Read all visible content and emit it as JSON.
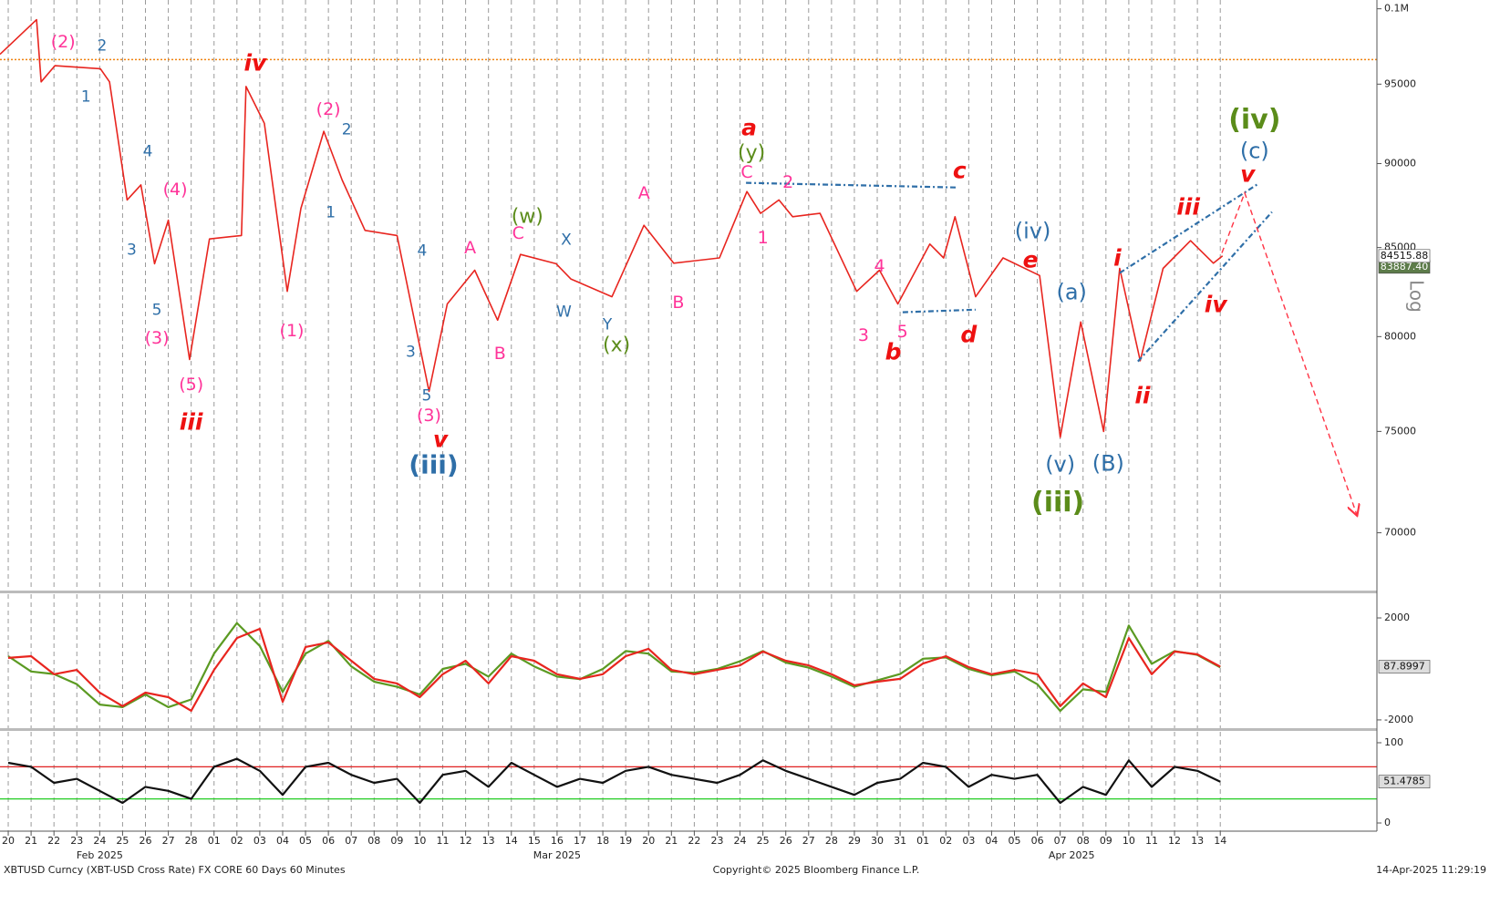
{
  "chart_data": [
    {
      "type": "line",
      "log_scale": true,
      "scale_label": "Log",
      "xlim": [
        -0.36,
        59.85
      ],
      "ylim": [
        67300,
        100600
      ],
      "yticks": [
        70000,
        75000,
        80000,
        85000,
        90000,
        95000,
        {
          "value": 100000,
          "label": "0.1M"
        }
      ],
      "xticks": [
        {
          "value": 0,
          "label": "20"
        },
        {
          "value": 1,
          "label": "21"
        },
        {
          "value": 2,
          "label": "22"
        },
        {
          "value": 3,
          "label": "23"
        },
        {
          "value": 4,
          "label": "24"
        },
        {
          "value": 5,
          "label": "25"
        },
        {
          "value": 6,
          "label": "26"
        },
        {
          "value": 7,
          "label": "27"
        },
        {
          "value": 8,
          "label": "28"
        },
        {
          "value": 9,
          "label": "01"
        },
        {
          "value": 10,
          "label": "02"
        },
        {
          "value": 11,
          "label": "03"
        },
        {
          "value": 12,
          "label": "04"
        },
        {
          "value": 13,
          "label": "05"
        },
        {
          "value": 14,
          "label": "06"
        },
        {
          "value": 15,
          "label": "07"
        },
        {
          "value": 16,
          "label": "08"
        },
        {
          "value": 17,
          "label": "09"
        },
        {
          "value": 18,
          "label": "10"
        },
        {
          "value": 19,
          "label": "11"
        },
        {
          "value": 20,
          "label": "12"
        },
        {
          "value": 21,
          "label": "13"
        },
        {
          "value": 22,
          "label": "14"
        },
        {
          "value": 23,
          "label": "15"
        },
        {
          "value": 24,
          "label": "16"
        },
        {
          "value": 25,
          "label": "17"
        },
        {
          "value": 26,
          "label": "18"
        },
        {
          "value": 27,
          "label": "19"
        },
        {
          "value": 28,
          "label": "20"
        },
        {
          "value": 29,
          "label": "21"
        },
        {
          "value": 30,
          "label": "22"
        },
        {
          "value": 31,
          "label": "23"
        },
        {
          "value": 32,
          "label": "24"
        },
        {
          "value": 33,
          "label": "25"
        },
        {
          "value": 34,
          "label": "26"
        },
        {
          "value": 35,
          "label": "27"
        },
        {
          "value": 36,
          "label": "28"
        },
        {
          "value": 37,
          "label": "29"
        },
        {
          "value": 38,
          "label": "30"
        },
        {
          "value": 39,
          "label": "31"
        },
        {
          "value": 40,
          "label": "01"
        },
        {
          "value": 41,
          "label": "02"
        },
        {
          "value": 42,
          "label": "03"
        },
        {
          "value": 43,
          "label": "04"
        },
        {
          "value": 44,
          "label": "05"
        },
        {
          "value": 45,
          "label": "06"
        },
        {
          "value": 46,
          "label": "07"
        },
        {
          "value": 47,
          "label": "08"
        },
        {
          "value": 48,
          "label": "09"
        },
        {
          "value": 49,
          "label": "10"
        },
        {
          "value": 50,
          "label": "11"
        },
        {
          "value": 51,
          "label": "12"
        },
        {
          "value": 52,
          "label": "13"
        },
        {
          "value": 53,
          "label": "14"
        }
      ],
      "month_labels": [
        {
          "value": 4,
          "label": "Feb 2025"
        },
        {
          "value": 24,
          "label": "Mar 2025"
        },
        {
          "value": 46.5,
          "label": "Apr 2025"
        }
      ],
      "series": [
        {
          "color": "#e8251f",
          "x": [
            -0.36,
            1.24,
            1.44,
            2.04,
            4.03,
            4.43,
            5.2,
            5.8,
            6.4,
            7.0,
            7.93,
            8.8,
            10.2,
            10.4,
            11.2,
            12.2,
            12.8,
            13.8,
            14.6,
            15.6,
            17.0,
            18.4,
            19.2,
            20.4,
            21.4,
            22.4,
            23.96,
            24.6,
            26.4,
            27.8,
            29.1,
            31.1,
            32.3,
            32.9,
            33.7,
            34.3,
            35.5,
            37.1,
            38.1,
            38.9,
            40.3,
            40.9,
            41.4,
            42.3,
            43.5,
            45.1,
            46.0,
            46.9,
            47.9,
            48.6,
            49.5,
            50.5,
            51.7,
            52.7,
            53.1
          ],
          "values": [
            96950,
            99260,
            95150,
            96200,
            96000,
            95150,
            87800,
            88700,
            84070,
            86600,
            78760,
            85500,
            85700,
            94850,
            92500,
            82500,
            87300,
            92000,
            89000,
            86000,
            85700,
            77070,
            81800,
            83700,
            80900,
            84600,
            84070,
            83200,
            82200,
            86300,
            84100,
            84400,
            88300,
            87000,
            87800,
            86800,
            87000,
            82500,
            83700,
            81800,
            85200,
            84400,
            86800,
            82200,
            84400,
            83400,
            74700,
            80800,
            75000,
            83800,
            78700,
            83800,
            85400,
            84100,
            84515.88
          ]
        }
      ],
      "ma_last": {
        "value": 83887.4,
        "label": "83887.40"
      },
      "reference_line": {
        "value": 96600,
        "color": "#f0820f"
      },
      "trend_lines": [
        {
          "color": "#2f6fa8",
          "x": [
            32.26,
            41.43
          ],
          "y": [
            88830,
            88550
          ]
        },
        {
          "color": "#2f6fa8",
          "x": [
            39.11,
            42.3
          ],
          "y": [
            81340,
            81480
          ]
        },
        {
          "color": "#2f6fa8",
          "x": [
            48.6,
            54.67
          ],
          "y": [
            83540,
            88780
          ]
        },
        {
          "color": "#2f6fa8",
          "x": [
            49.4,
            55.26
          ],
          "y": [
            78660,
            87080
          ]
        }
      ],
      "projection": {
        "color": "#ff3344",
        "x": [
          53.07,
          54.07,
          58.97
        ],
        "y": [
          84690,
          88220,
          70870
        ]
      },
      "wave_labels": [
        {
          "color": "#ff3399",
          "labels": [
            {
              "text": "(2)",
              "x": 2.4,
              "y": 97730
            },
            {
              "text": "(4)",
              "x": 7.3,
              "y": 88390
            },
            {
              "text": "(3)",
              "x": 6.5,
              "y": 79890
            },
            {
              "text": "(5)",
              "x": 8.0,
              "y": 77400
            },
            {
              "text": "(2)",
              "x": 14.0,
              "y": 93350
            },
            {
              "text": "(1)",
              "x": 12.4,
              "y": 80280
            },
            {
              "text": "(3)",
              "x": 18.4,
              "y": 75780
            },
            {
              "text": "A",
              "x": 20.2,
              "y": 84950
            },
            {
              "text": "C",
              "x": 22.3,
              "y": 85800
            },
            {
              "text": "A",
              "x": 27.8,
              "y": 88170
            },
            {
              "text": "B",
              "x": 21.5,
              "y": 79050
            },
            {
              "text": "B",
              "x": 29.3,
              "y": 81840
            },
            {
              "text": "C",
              "x": 32.3,
              "y": 89440
            },
            {
              "text": "2",
              "x": 34.1,
              "y": 88830
            },
            {
              "text": "1",
              "x": 33.0,
              "y": 85530
            },
            {
              "text": "4",
              "x": 38.1,
              "y": 83900
            },
            {
              "text": "3",
              "x": 37.4,
              "y": 80040
            },
            {
              "text": "5",
              "x": 39.1,
              "y": 80230
            }
          ]
        },
        {
          "color": "#2f6fa8",
          "labels": [
            {
              "text": "2",
              "x": 4.1,
              "y": 97490
            },
            {
              "text": "1",
              "x": 3.4,
              "y": 94160
            },
            {
              "text": "4",
              "x": 6.1,
              "y": 90720
            },
            {
              "text": "3",
              "x": 5.4,
              "y": 84840
            },
            {
              "text": "5",
              "x": 6.5,
              "y": 81440
            },
            {
              "text": "2",
              "x": 14.8,
              "y": 92080
            },
            {
              "text": "1",
              "x": 14.1,
              "y": 87030
            },
            {
              "text": "4",
              "x": 18.1,
              "y": 84790
            },
            {
              "text": "3",
              "x": 17.6,
              "y": 79150
            },
            {
              "text": "5",
              "x": 18.3,
              "y": 76830
            },
            {
              "text": "X",
              "x": 24.4,
              "y": 85420
            },
            {
              "text": "W",
              "x": 24.3,
              "y": 81340
            },
            {
              "text": "Y",
              "x": 26.2,
              "y": 80630
            }
          ]
        },
        {
          "color": "#2f6fa8",
          "labels": [
            {
              "text": "(iv)",
              "x": 44.8,
              "y": 85900
            },
            {
              "text": "(a)",
              "x": 46.5,
              "y": 82400
            },
            {
              "text": "(v)",
              "x": 46.0,
              "y": 73290
            },
            {
              "text": "(B)",
              "x": 48.1,
              "y": 73330
            },
            {
              "text": "(c)",
              "x": 54.5,
              "y": 90720
            }
          ]
        },
        {
          "color": "#2f6fa8",
          "labels": [
            {
              "text": "(iii)",
              "x": 18.6,
              "y": 73240
            }
          ]
        },
        {
          "color": "#5b8c1a",
          "labels": [
            {
              "text": "(w)",
              "x": 22.7,
              "y": 86760
            },
            {
              "text": "(x)",
              "x": 26.6,
              "y": 79490
            },
            {
              "text": "(y)",
              "x": 32.5,
              "y": 90610
            }
          ]
        },
        {
          "color": "#5b8c1a",
          "labels": [
            {
              "text": "(iii)",
              "x": 45.9,
              "y": 71410
            },
            {
              "text": "(iv)",
              "x": 54.5,
              "y": 92660
            }
          ]
        },
        {
          "color": "#ee1111",
          "labels": [
            {
              "text": "iv",
              "x": 10.8,
              "y": 96290
            },
            {
              "text": "iii",
              "x": 8.0,
              "y": 75410
            },
            {
              "text": "v",
              "x": 18.9,
              "y": 74530
            },
            {
              "text": "a",
              "x": 32.4,
              "y": 92140
            },
            {
              "text": "c",
              "x": 41.6,
              "y": 89500
            },
            {
              "text": "b",
              "x": 38.7,
              "y": 79100
            },
            {
              "text": "d",
              "x": 42.0,
              "y": 80040
            },
            {
              "text": "e",
              "x": 44.7,
              "y": 84220
            },
            {
              "text": "i",
              "x": 48.5,
              "y": 84320
            },
            {
              "text": "ii",
              "x": 49.6,
              "y": 76780
            },
            {
              "text": "iii",
              "x": 51.6,
              "y": 87300
            },
            {
              "text": "iv",
              "x": 52.8,
              "y": 81700
            },
            {
              "text": "v",
              "x": 54.2,
              "y": 89270
            }
          ]
        }
      ]
    },
    {
      "type": "line",
      "xlim": [
        -0.36,
        59.85
      ],
      "ylim": [
        -2360,
        2930
      ],
      "yticks": [
        2000,
        -2000
      ],
      "x": [
        0,
        1,
        2,
        3,
        4,
        5,
        6,
        7,
        8,
        9,
        10,
        11,
        12,
        13,
        14,
        15,
        16,
        17,
        18,
        19,
        20,
        21,
        22,
        23,
        24,
        25,
        26,
        27,
        28,
        29,
        30,
        31,
        32,
        33,
        34,
        35,
        36,
        37,
        38,
        39,
        40,
        41,
        42,
        43,
        44,
        45,
        46,
        47,
        48,
        49,
        50,
        51,
        52,
        53
      ],
      "series": [
        {
          "color": "#5b9a22",
          "values": [
            500,
            -100,
            -200,
            -600,
            -1400,
            -1500,
            -1000,
            -1500,
            -1200,
            600,
            1800,
            900,
            -900,
            600,
            1100,
            100,
            -500,
            -700,
            -1000,
            0,
            200,
            -300,
            600,
            100,
            -300,
            -400,
            0,
            700,
            600,
            -100,
            -150,
            0,
            300,
            700,
            250,
            50,
            -300,
            -700,
            -450,
            -200,
            400,
            450,
            0,
            -250,
            -100,
            -600,
            -1650,
            -800,
            -900,
            1700,
            200,
            700,
            550,
            60
          ]
        },
        {
          "color": "#e8251f",
          "values": [
            430,
            500,
            -210,
            -40,
            -930,
            -1460,
            -930,
            -1110,
            -1640,
            -40,
            1210,
            1570,
            -1290,
            860,
            1040,
            320,
            -390,
            -570,
            -1110,
            -210,
            320,
            -570,
            500,
            320,
            -210,
            -390,
            -210,
            500,
            790,
            -40,
            -210,
            -40,
            140,
            680,
            320,
            140,
            -210,
            -640,
            -500,
            -390,
            210,
            500,
            70,
            -210,
            -40,
            -210,
            -1460,
            -570,
            -1110,
            1210,
            -210,
            680,
            570,
            87.8997
          ]
        }
      ]
    },
    {
      "type": "line",
      "xlim": [
        -0.36,
        59.85
      ],
      "ylim": [
        -10.2,
        113.6
      ],
      "yticks": [
        100,
        0
      ],
      "x": [
        0,
        1,
        2,
        3,
        4,
        5,
        6,
        7,
        8,
        9,
        10,
        11,
        12,
        13,
        14,
        15,
        16,
        17,
        18,
        19,
        20,
        21,
        22,
        23,
        24,
        25,
        26,
        27,
        28,
        29,
        30,
        31,
        32,
        33,
        34,
        35,
        36,
        37,
        38,
        39,
        40,
        41,
        42,
        43,
        44,
        45,
        46,
        47,
        48,
        49,
        50,
        51,
        52,
        53
      ],
      "levels": [
        {
          "value": 70,
          "color": "#e02020"
        },
        {
          "value": 30,
          "color": "#22cc22"
        }
      ],
      "series": [
        {
          "color": "#111111",
          "values": [
            75,
            70,
            50,
            55,
            40,
            25,
            45,
            40,
            30,
            70,
            80,
            65,
            35,
            70,
            75,
            60,
            50,
            55,
            25,
            60,
            65,
            45,
            75,
            60,
            45,
            55,
            50,
            65,
            70,
            60,
            55,
            50,
            60,
            78,
            65,
            55,
            45,
            35,
            50,
            55,
            75,
            70,
            45,
            60,
            55,
            60,
            25,
            45,
            35,
            78,
            45,
            70,
            65,
            51.4785
          ]
        }
      ]
    }
  ],
  "footer": {
    "source": "XBTUSD Curncy (XBT-USD Cross Rate) FX CORE 60 Days 60 Minutes",
    "copyright": "Copyright© 2025 Bloomberg Finance L.P.",
    "timestamp": "14-Apr-2025 11:29:19"
  }
}
